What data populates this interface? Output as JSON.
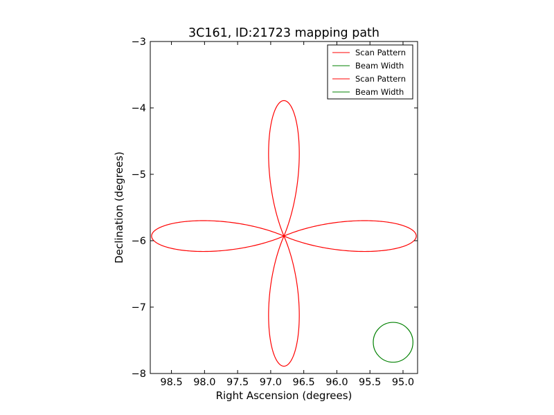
{
  "chart_data": {
    "type": "line",
    "title": "3C161, ID:21723 mapping path",
    "xlabel": "Right Ascension (degrees)",
    "ylabel": "Declination (degrees)",
    "xlim": [
      98.82,
      94.78
    ],
    "ylim": [
      -8,
      -3
    ],
    "x_inverted": true,
    "xticks": [
      98.5,
      98.0,
      97.5,
      97.0,
      96.5,
      96.0,
      95.5,
      95.0
    ],
    "xtick_labels": [
      "98.5",
      "98.0",
      "97.5",
      "97.0",
      "96.5",
      "96.0",
      "95.5",
      "95.0"
    ],
    "yticks": [
      -8,
      -7,
      -6,
      -5,
      -4,
      -3
    ],
    "ytick_labels": [
      "−8",
      "−7",
      "−6",
      "−5",
      "−4",
      "−3"
    ],
    "grid": false,
    "legend_position": "top-right",
    "legend": [
      {
        "label": "Scan Pattern",
        "color": "#ff0000"
      },
      {
        "label": "Beam Width",
        "color": "#008000"
      },
      {
        "label": "Scan Pattern",
        "color": "#ff0000"
      },
      {
        "label": "Beam Width",
        "color": "#008000"
      }
    ],
    "series": [
      {
        "name": "Scan Pattern",
        "color": "#ff0000",
        "shape": "four-petal rose",
        "center": [
          96.8,
          -5.93
        ],
        "petals": [
          {
            "direction": "north",
            "tip": [
              96.8,
              -3.89
            ]
          },
          {
            "direction": "south",
            "tip": [
              96.8,
              -7.89
            ]
          },
          {
            "direction": "east (left)",
            "tip": [
              98.8,
              -5.93
            ]
          },
          {
            "direction": "west (right)",
            "tip": [
              94.8,
              -5.93
            ]
          }
        ],
        "petal_half_width": [
          0.55,
          0.55
        ]
      },
      {
        "name": "Beam Width",
        "color": "#008000",
        "shape": "circle",
        "center": [
          95.15,
          -7.53
        ],
        "radius": 0.3
      }
    ]
  }
}
